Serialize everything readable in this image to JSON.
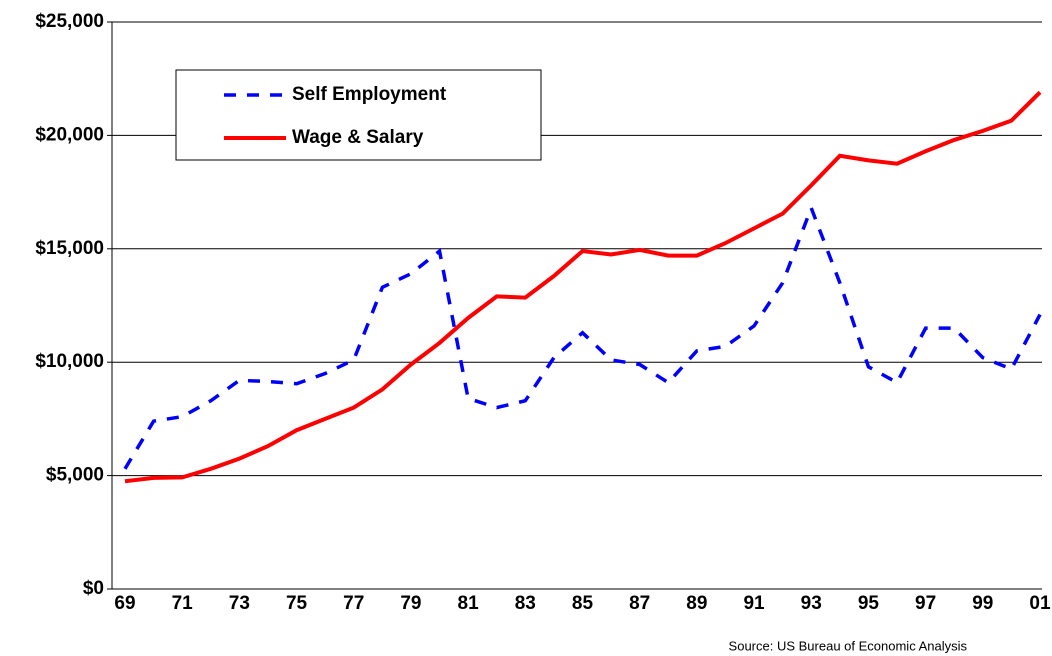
{
  "chart_data": {
    "type": "line",
    "categories": [
      "69",
      null,
      "71",
      null,
      "73",
      null,
      "75",
      null,
      "77",
      null,
      "79",
      null,
      "81",
      null,
      "83",
      null,
      "85",
      null,
      "87",
      null,
      "89",
      null,
      "91",
      null,
      "93",
      null,
      "95",
      null,
      "97",
      null,
      "99",
      null,
      "01"
    ],
    "series": [
      {
        "name": "Self Employment",
        "color": "#0000ff",
        "line_style": "dashed",
        "values": [
          5300,
          7400,
          7600,
          8300,
          9200,
          9150,
          9050,
          9500,
          10100,
          13300,
          13900,
          14900,
          8400,
          8000,
          8300,
          10200,
          11300,
          10100,
          9900,
          9100,
          10500,
          10700,
          11600,
          13500,
          16800,
          13500,
          9800,
          9100,
          11500,
          11500,
          10200,
          9700,
          12100
        ]
      },
      {
        "name": "Wage & Salary",
        "color": "#ff0000",
        "line_style": "solid",
        "values": [
          4750,
          4900,
          4920,
          5300,
          5750,
          6300,
          7000,
          7500,
          8000,
          8800,
          9900,
          10850,
          11950,
          12900,
          12850,
          13800,
          14900,
          14750,
          14950,
          14700,
          14700,
          15250,
          15900,
          16550,
          17800,
          19100,
          18900,
          18750,
          19300,
          19800,
          20200,
          20650,
          21900
        ]
      }
    ],
    "ylim": [
      0,
      25000
    ],
    "yticks": [
      {
        "value": 0,
        "label": "$0"
      },
      {
        "value": 5000,
        "label": "$5,000"
      },
      {
        "value": 10000,
        "label": "$10,000"
      },
      {
        "value": 15000,
        "label": "$15,000"
      },
      {
        "value": 20000,
        "label": "$20,000"
      },
      {
        "value": 25000,
        "label": "$25,000"
      }
    ],
    "grid": true,
    "legend": "upper left",
    "source": "Source:  US Bureau of Economic Analysis"
  }
}
